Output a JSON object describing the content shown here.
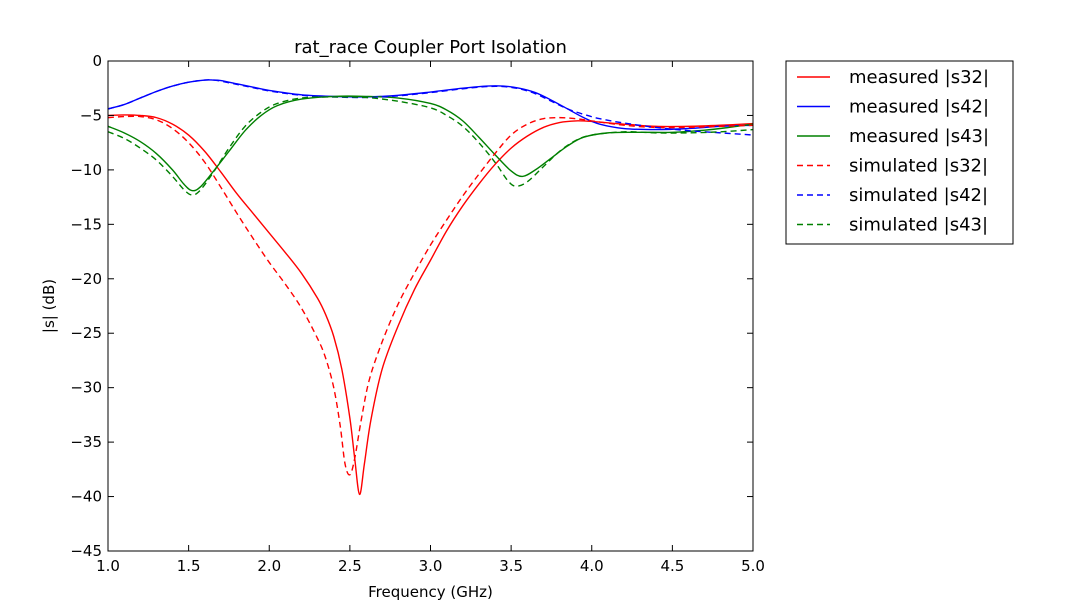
{
  "chart_data": {
    "type": "line",
    "title": "rat_race Coupler Port Isolation",
    "xlabel": "Frequency (GHz)",
    "ylabel": "|s| (dB)",
    "xlim": [
      1.0,
      5.0
    ],
    "ylim": [
      -45,
      0
    ],
    "xticks": [
      1.0,
      1.5,
      2.0,
      2.5,
      3.0,
      3.5,
      4.0,
      4.5,
      5.0
    ],
    "xtick_labels": [
      "1.0",
      "1.5",
      "2.0",
      "2.5",
      "3.0",
      "3.5",
      "4.0",
      "4.5",
      "5.0"
    ],
    "yticks": [
      0,
      -5,
      -10,
      -15,
      -20,
      -25,
      -30,
      -35,
      -40,
      -45
    ],
    "ytick_labels": [
      "0",
      "−5",
      "−10",
      "−15",
      "−20",
      "−25",
      "−30",
      "−35",
      "−40",
      "−45"
    ],
    "grid": false,
    "legend_position": "outside-right-top",
    "series": [
      {
        "name": "measured |s32|",
        "color": "#ff0000",
        "dash": "solid",
        "points": [
          [
            1.0,
            -5.0
          ],
          [
            1.1,
            -4.95
          ],
          [
            1.2,
            -5.0
          ],
          [
            1.3,
            -5.2
          ],
          [
            1.4,
            -5.8
          ],
          [
            1.5,
            -6.8
          ],
          [
            1.6,
            -8.3
          ],
          [
            1.7,
            -10.2
          ],
          [
            1.8,
            -12.2
          ],
          [
            1.9,
            -14.0
          ],
          [
            2.0,
            -15.8
          ],
          [
            2.1,
            -17.6
          ],
          [
            2.2,
            -19.5
          ],
          [
            2.3,
            -21.8
          ],
          [
            2.35,
            -23.3
          ],
          [
            2.4,
            -25.3
          ],
          [
            2.45,
            -28.3
          ],
          [
            2.5,
            -32.8
          ],
          [
            2.53,
            -36.5
          ],
          [
            2.56,
            -39.8
          ],
          [
            2.59,
            -37.0
          ],
          [
            2.63,
            -33.0
          ],
          [
            2.7,
            -28.3
          ],
          [
            2.8,
            -24.3
          ],
          [
            2.9,
            -21.0
          ],
          [
            3.0,
            -18.3
          ],
          [
            3.1,
            -15.6
          ],
          [
            3.2,
            -13.3
          ],
          [
            3.3,
            -11.3
          ],
          [
            3.4,
            -9.5
          ],
          [
            3.5,
            -8.0
          ],
          [
            3.6,
            -6.9
          ],
          [
            3.7,
            -6.1
          ],
          [
            3.8,
            -5.65
          ],
          [
            3.9,
            -5.5
          ],
          [
            4.0,
            -5.55
          ],
          [
            4.2,
            -5.8
          ],
          [
            4.4,
            -6.0
          ],
          [
            4.6,
            -6.0
          ],
          [
            4.8,
            -5.9
          ],
          [
            5.0,
            -5.75
          ]
        ]
      },
      {
        "name": "measured |s42|",
        "color": "#0000ff",
        "dash": "solid",
        "points": [
          [
            1.0,
            -4.4
          ],
          [
            1.1,
            -4.0
          ],
          [
            1.2,
            -3.4
          ],
          [
            1.3,
            -2.8
          ],
          [
            1.4,
            -2.3
          ],
          [
            1.5,
            -1.95
          ],
          [
            1.6,
            -1.75
          ],
          [
            1.65,
            -1.75
          ],
          [
            1.7,
            -1.8
          ],
          [
            1.8,
            -2.1
          ],
          [
            1.9,
            -2.4
          ],
          [
            2.0,
            -2.7
          ],
          [
            2.2,
            -3.1
          ],
          [
            2.4,
            -3.25
          ],
          [
            2.6,
            -3.3
          ],
          [
            2.8,
            -3.15
          ],
          [
            3.0,
            -2.85
          ],
          [
            3.2,
            -2.5
          ],
          [
            3.35,
            -2.3
          ],
          [
            3.45,
            -2.3
          ],
          [
            3.55,
            -2.5
          ],
          [
            3.65,
            -2.9
          ],
          [
            3.75,
            -3.6
          ],
          [
            3.85,
            -4.4
          ],
          [
            3.95,
            -5.2
          ],
          [
            4.05,
            -5.8
          ],
          [
            4.2,
            -6.2
          ],
          [
            4.4,
            -6.3
          ],
          [
            4.6,
            -6.2
          ],
          [
            4.8,
            -6.0
          ],
          [
            5.0,
            -5.9
          ]
        ]
      },
      {
        "name": "measured |s43|",
        "color": "#008000",
        "dash": "solid",
        "points": [
          [
            1.0,
            -6.0
          ],
          [
            1.1,
            -6.6
          ],
          [
            1.2,
            -7.4
          ],
          [
            1.3,
            -8.5
          ],
          [
            1.4,
            -10.0
          ],
          [
            1.47,
            -11.3
          ],
          [
            1.52,
            -11.9
          ],
          [
            1.57,
            -11.6
          ],
          [
            1.65,
            -10.2
          ],
          [
            1.75,
            -8.3
          ],
          [
            1.85,
            -6.4
          ],
          [
            1.95,
            -5.0
          ],
          [
            2.05,
            -4.1
          ],
          [
            2.2,
            -3.5
          ],
          [
            2.4,
            -3.25
          ],
          [
            2.6,
            -3.25
          ],
          [
            2.8,
            -3.4
          ],
          [
            3.0,
            -3.9
          ],
          [
            3.1,
            -4.5
          ],
          [
            3.2,
            -5.5
          ],
          [
            3.3,
            -7.0
          ],
          [
            3.4,
            -8.6
          ],
          [
            3.5,
            -10.1
          ],
          [
            3.57,
            -10.6
          ],
          [
            3.65,
            -10.0
          ],
          [
            3.75,
            -8.9
          ],
          [
            3.85,
            -7.8
          ],
          [
            3.95,
            -7.0
          ],
          [
            4.1,
            -6.6
          ],
          [
            4.3,
            -6.55
          ],
          [
            4.5,
            -6.55
          ],
          [
            4.7,
            -6.35
          ],
          [
            4.85,
            -6.1
          ],
          [
            5.0,
            -5.8
          ]
        ]
      },
      {
        "name": "simulated |s32|",
        "color": "#ff0000",
        "dash": "dashed",
        "points": [
          [
            1.0,
            -5.2
          ],
          [
            1.1,
            -5.1
          ],
          [
            1.2,
            -5.1
          ],
          [
            1.3,
            -5.4
          ],
          [
            1.4,
            -6.2
          ],
          [
            1.5,
            -7.5
          ],
          [
            1.6,
            -9.3
          ],
          [
            1.7,
            -11.6
          ],
          [
            1.8,
            -14.0
          ],
          [
            1.9,
            -16.3
          ],
          [
            2.0,
            -18.5
          ],
          [
            2.1,
            -20.5
          ],
          [
            2.2,
            -22.7
          ],
          [
            2.3,
            -25.5
          ],
          [
            2.35,
            -27.3
          ],
          [
            2.4,
            -30.0
          ],
          [
            2.44,
            -33.5
          ],
          [
            2.47,
            -37.0
          ],
          [
            2.5,
            -38.0
          ],
          [
            2.53,
            -36.5
          ],
          [
            2.57,
            -33.0
          ],
          [
            2.62,
            -29.3
          ],
          [
            2.7,
            -25.8
          ],
          [
            2.8,
            -22.3
          ],
          [
            2.9,
            -19.5
          ],
          [
            3.0,
            -16.9
          ],
          [
            3.1,
            -14.6
          ],
          [
            3.2,
            -12.4
          ],
          [
            3.3,
            -10.4
          ],
          [
            3.4,
            -8.5
          ],
          [
            3.5,
            -6.8
          ],
          [
            3.6,
            -5.8
          ],
          [
            3.7,
            -5.3
          ],
          [
            3.8,
            -5.2
          ],
          [
            3.9,
            -5.3
          ],
          [
            4.0,
            -5.5
          ],
          [
            4.2,
            -5.9
          ],
          [
            4.4,
            -6.1
          ],
          [
            4.6,
            -6.1
          ],
          [
            4.8,
            -6.0
          ],
          [
            5.0,
            -5.9
          ]
        ]
      },
      {
        "name": "simulated |s42|",
        "color": "#0000ff",
        "dash": "dashed",
        "points": [
          [
            1.0,
            -4.4
          ],
          [
            1.1,
            -4.0
          ],
          [
            1.2,
            -3.4
          ],
          [
            1.3,
            -2.8
          ],
          [
            1.4,
            -2.3
          ],
          [
            1.5,
            -1.95
          ],
          [
            1.6,
            -1.75
          ],
          [
            1.65,
            -1.75
          ],
          [
            1.7,
            -1.85
          ],
          [
            1.8,
            -2.15
          ],
          [
            1.9,
            -2.45
          ],
          [
            2.0,
            -2.75
          ],
          [
            2.2,
            -3.15
          ],
          [
            2.4,
            -3.3
          ],
          [
            2.6,
            -3.35
          ],
          [
            2.8,
            -3.2
          ],
          [
            3.0,
            -2.9
          ],
          [
            3.2,
            -2.55
          ],
          [
            3.35,
            -2.35
          ],
          [
            3.45,
            -2.35
          ],
          [
            3.55,
            -2.55
          ],
          [
            3.65,
            -3.0
          ],
          [
            3.75,
            -3.7
          ],
          [
            3.85,
            -4.4
          ],
          [
            3.95,
            -4.9
          ],
          [
            4.05,
            -5.3
          ],
          [
            4.2,
            -5.7
          ],
          [
            4.4,
            -6.1
          ],
          [
            4.6,
            -6.4
          ],
          [
            4.8,
            -6.6
          ],
          [
            5.0,
            -6.8
          ]
        ]
      },
      {
        "name": "simulated |s43|",
        "color": "#008000",
        "dash": "dashed",
        "points": [
          [
            1.0,
            -6.5
          ],
          [
            1.1,
            -7.1
          ],
          [
            1.2,
            -8.0
          ],
          [
            1.3,
            -9.1
          ],
          [
            1.4,
            -10.6
          ],
          [
            1.47,
            -11.8
          ],
          [
            1.52,
            -12.3
          ],
          [
            1.57,
            -11.9
          ],
          [
            1.65,
            -10.3
          ],
          [
            1.75,
            -8.0
          ],
          [
            1.85,
            -6.0
          ],
          [
            1.95,
            -4.7
          ],
          [
            2.05,
            -3.9
          ],
          [
            2.2,
            -3.4
          ],
          [
            2.4,
            -3.3
          ],
          [
            2.6,
            -3.35
          ],
          [
            2.8,
            -3.7
          ],
          [
            3.0,
            -4.3
          ],
          [
            3.1,
            -5.0
          ],
          [
            3.2,
            -6.0
          ],
          [
            3.3,
            -7.5
          ],
          [
            3.4,
            -9.3
          ],
          [
            3.48,
            -11.0
          ],
          [
            3.53,
            -11.5
          ],
          [
            3.6,
            -11.1
          ],
          [
            3.7,
            -9.7
          ],
          [
            3.8,
            -8.3
          ],
          [
            3.9,
            -7.3
          ],
          [
            4.0,
            -6.8
          ],
          [
            4.2,
            -6.5
          ],
          [
            4.4,
            -6.6
          ],
          [
            4.6,
            -6.6
          ],
          [
            4.8,
            -6.5
          ],
          [
            5.0,
            -6.3
          ]
        ]
      }
    ]
  }
}
